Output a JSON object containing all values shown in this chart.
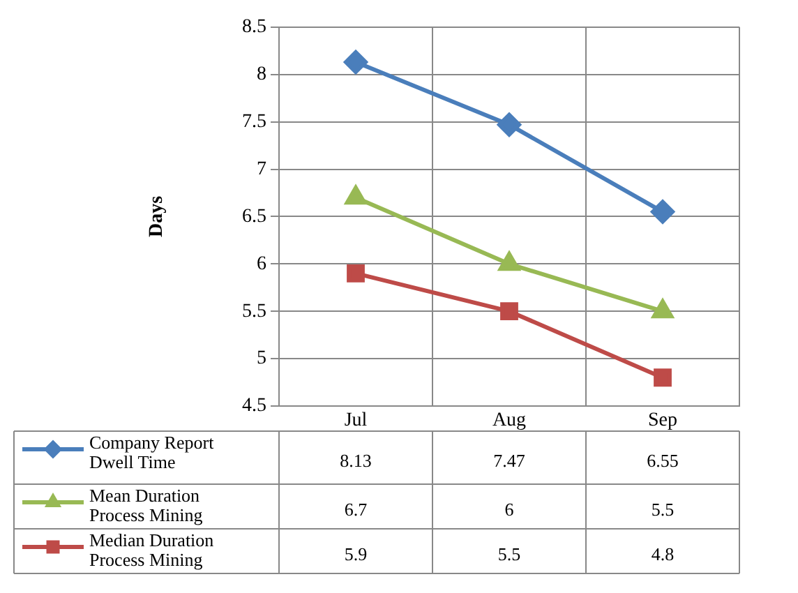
{
  "chart_data": {
    "type": "line",
    "ylabel": "Days",
    "categories": [
      "Jul",
      "Aug",
      "Sep"
    ],
    "series": [
      {
        "name": "Company Report Dwell Time",
        "color": "#4a7ebb",
        "marker": "diamond",
        "values": [
          8.13,
          7.47,
          6.55
        ]
      },
      {
        "name": "Mean Duration Process Mining",
        "color": "#98b954",
        "marker": "triangle",
        "values": [
          6.7,
          6,
          5.5
        ]
      },
      {
        "name": "Median Duration Process Mining",
        "color": "#be4b48",
        "marker": "square",
        "values": [
          5.9,
          5.5,
          4.8
        ]
      }
    ],
    "ylim": [
      4.5,
      8.5
    ],
    "yticks": [
      4.5,
      5,
      5.5,
      6,
      6.5,
      7,
      7.5,
      8,
      8.5
    ],
    "grid": true,
    "legend": "bottom left",
    "data_labels": true
  }
}
